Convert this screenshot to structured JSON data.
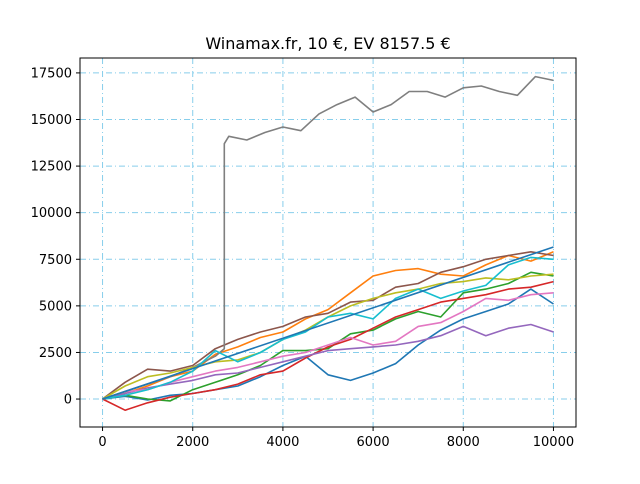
{
  "chart_data": {
    "type": "line",
    "title": "Winamax.fr, 10 €, EV 8157.5 €",
    "xlabel": "",
    "ylabel": "",
    "xlim": [
      -500,
      10500
    ],
    "ylim": [
      -1500,
      18300
    ],
    "xticks": [
      0,
      2000,
      4000,
      6000,
      8000,
      10000
    ],
    "xtick_labels": [
      "0",
      "2000",
      "4000",
      "6000",
      "8000",
      "10000"
    ],
    "yticks": [
      0,
      2500,
      5000,
      7500,
      10000,
      12500,
      15000,
      17500
    ],
    "ytick_labels": [
      "0",
      "2500",
      "5000",
      "7500",
      "10000",
      "12500",
      "15000",
      "17500"
    ],
    "grid": true,
    "grid_color": "#87ceeb",
    "legend": "none",
    "series": [
      {
        "color": "#1f77b4",
        "x": [
          0,
          500,
          1000,
          1500,
          2000,
          2500,
          3000,
          3500,
          4000,
          4500,
          5000,
          5500,
          6000,
          6500,
          7000,
          7500,
          8000,
          8500,
          9000,
          9500,
          10000
        ],
        "y": [
          0,
          150,
          -50,
          200,
          300,
          500,
          700,
          1200,
          1800,
          2300,
          1300,
          1000,
          1400,
          1900,
          2900,
          3700,
          4300,
          4700,
          5100,
          5900,
          5100
        ]
      },
      {
        "color": "#ff7f0e",
        "x": [
          0,
          500,
          1000,
          1500,
          2000,
          2500,
          3000,
          3500,
          4000,
          4500,
          5000,
          5500,
          6000,
          6500,
          7000,
          7500,
          8000,
          8500,
          9000,
          9500,
          10000
        ],
        "y": [
          0,
          300,
          700,
          1200,
          1500,
          2400,
          2800,
          3300,
          3600,
          4300,
          4800,
          5700,
          6600,
          6900,
          7000,
          6700,
          6600,
          7200,
          7700,
          7400,
          7900
        ]
      },
      {
        "color": "#2ca02c",
        "x": [
          0,
          500,
          1000,
          1500,
          2000,
          2500,
          3000,
          3500,
          4000,
          4500,
          5000,
          5500,
          6000,
          6500,
          7000,
          7500,
          8000,
          8500,
          9000,
          9500,
          10000
        ],
        "y": [
          0,
          200,
          0,
          -100,
          500,
          900,
          1300,
          1800,
          2600,
          2600,
          2700,
          3500,
          3700,
          4300,
          4700,
          4400,
          5700,
          5900,
          6200,
          6800,
          6600
        ]
      },
      {
        "color": "#d62728",
        "x": [
          0,
          500,
          1000,
          1500,
          2000,
          2500,
          3000,
          3500,
          4000,
          4500,
          5000,
          5500,
          6000,
          6500,
          7000,
          7500,
          8000,
          8500,
          9000,
          9500,
          10000
        ],
        "y": [
          0,
          -600,
          -200,
          100,
          300,
          500,
          800,
          1300,
          1500,
          2200,
          2800,
          3200,
          3800,
          4400,
          4800,
          5200,
          5400,
          5600,
          5900,
          6000,
          6300
        ]
      },
      {
        "color": "#9467bd",
        "x": [
          0,
          500,
          1000,
          1500,
          2000,
          2500,
          3000,
          3500,
          4000,
          4500,
          5000,
          5500,
          6000,
          6500,
          7000,
          7500,
          8000,
          8500,
          9000,
          9500,
          10000
        ],
        "y": [
          0,
          300,
          600,
          800,
          1000,
          1300,
          1400,
          1700,
          2000,
          2300,
          2600,
          2700,
          2800,
          2900,
          3100,
          3400,
          3900,
          3400,
          3800,
          4000,
          3600
        ]
      },
      {
        "color": "#8c564b",
        "x": [
          0,
          500,
          1000,
          1500,
          2000,
          2500,
          3000,
          3500,
          4000,
          4500,
          5000,
          5500,
          6000,
          6500,
          7000,
          7500,
          8000,
          8500,
          9000,
          9500,
          10000
        ],
        "y": [
          0,
          900,
          1600,
          1500,
          1800,
          2700,
          3200,
          3600,
          3900,
          4400,
          4600,
          5200,
          5300,
          6000,
          6200,
          6800,
          7100,
          7500,
          7700,
          7900,
          7700
        ]
      },
      {
        "color": "#e377c2",
        "x": [
          0,
          500,
          1000,
          1500,
          2000,
          2500,
          3000,
          3500,
          4000,
          4500,
          5000,
          5500,
          6000,
          6500,
          7000,
          7500,
          8000,
          8500,
          9000,
          9500,
          10000
        ],
        "y": [
          0,
          400,
          500,
          900,
          1200,
          1500,
          1700,
          2000,
          2300,
          2500,
          2900,
          3300,
          2900,
          3100,
          3900,
          4100,
          4700,
          5400,
          5300,
          5600,
          5700
        ]
      },
      {
        "color": "#7f7f7f",
        "x": [
          0,
          500,
          1000,
          1500,
          2000,
          2500,
          2700,
          2701,
          2800,
          3200,
          3600,
          4000,
          4400,
          4800,
          5200,
          5600,
          6000,
          6400,
          6800,
          7200,
          7600,
          8000,
          8400,
          8800,
          9200,
          9600,
          10000
        ],
        "y": [
          0,
          400,
          800,
          1200,
          1700,
          2300,
          2700,
          13700,
          14100,
          13900,
          14300,
          14600,
          14400,
          15300,
          15800,
          16200,
          15400,
          15800,
          16500,
          16500,
          16200,
          16700,
          16800,
          16500,
          16300,
          17300,
          17100
        ]
      },
      {
        "color": "#bcbd22",
        "x": [
          0,
          500,
          1000,
          1500,
          2000,
          2500,
          3000,
          3500,
          4000,
          4500,
          5000,
          5500,
          6000,
          6500,
          7000,
          7500,
          8000,
          8500,
          9000,
          9500,
          10000
        ],
        "y": [
          0,
          700,
          1200,
          1400,
          1700,
          2000,
          2100,
          2500,
          3200,
          3700,
          4400,
          5000,
          5400,
          5700,
          5900,
          6200,
          6300,
          6500,
          6400,
          6600,
          6700
        ]
      },
      {
        "color": "#17becf",
        "x": [
          0,
          500,
          1000,
          1500,
          2000,
          2500,
          3000,
          3500,
          4000,
          4500,
          5000,
          5500,
          6000,
          6500,
          7000,
          7500,
          8000,
          8500,
          9000,
          9500,
          10000
        ],
        "y": [
          0,
          200,
          500,
          900,
          1500,
          2600,
          2000,
          2500,
          3200,
          3600,
          4400,
          4600,
          4300,
          5400,
          5900,
          5400,
          5800,
          6100,
          7200,
          7600,
          7500
        ]
      },
      {
        "color": "#1f77b4",
        "x": [
          0,
          10000
        ],
        "y": [
          0,
          8157.5
        ]
      }
    ]
  }
}
